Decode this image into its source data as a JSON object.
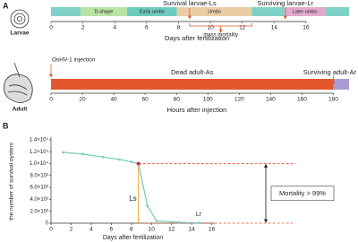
{
  "panel_a": {
    "label": "A",
    "larvae": {
      "label": "Larvae",
      "xlabel": "Days after fertilization",
      "xlim": [
        0,
        18.7
      ],
      "xticks": [
        0,
        2,
        4,
        6,
        8,
        10,
        12,
        14,
        16
      ],
      "segments": [
        {
          "label": null,
          "start": 0,
          "end": 1.85,
          "color": "#7fd0c6"
        },
        {
          "label": "D-shape",
          "start": 1.85,
          "end": 4.77,
          "color": "#b9e2a6"
        },
        {
          "label": "Early umbo",
          "start": 4.77,
          "end": 7.9,
          "color": "#6ccbbf"
        },
        {
          "label": "Umbo",
          "start": 7.9,
          "end": 12.6,
          "color": "#ebcda5"
        },
        {
          "label": null,
          "start": 12.6,
          "end": 14.65,
          "color": "#7fd0c6"
        },
        {
          "label": "Later umbo",
          "start": 14.65,
          "end": 17.2,
          "color": "#e2a9cf"
        },
        {
          "label": null,
          "start": 17.2,
          "end": 18.7,
          "color": "#7fd0c6"
        }
      ],
      "annotations": [
        {
          "text": "Survival larvae-Ls",
          "x": 8.7
        },
        {
          "text": "Surviving larvae-Lr",
          "x": 14.7
        },
        {
          "text": "mass mortality",
          "start": 8.7,
          "end": 12.6
        }
      ]
    },
    "adult": {
      "label": "Adult",
      "xlabel": "Hours after injection",
      "xlim": [
        0,
        190
      ],
      "xticks": [
        0,
        20,
        40,
        60,
        80,
        100,
        120,
        140,
        160,
        180
      ],
      "segments": [
        {
          "start": 0,
          "end": 180,
          "color": "#e4572e"
        },
        {
          "start": 180,
          "end": 190,
          "color": "#a99bd6"
        }
      ],
      "annotations": [
        {
          "text": "OsHV-1 injection",
          "x": 0
        },
        {
          "text": "Dead adult-As"
        },
        {
          "text": "Surviving adult-Ar",
          "x": 180
        }
      ]
    }
  },
  "chart_data": {
    "type": "line",
    "panel_label": "B",
    "xlabel": "Days after fertilization",
    "ylabel": "the number of survival oysters",
    "x": [
      1.2,
      3.2,
      5.2,
      6.8,
      8.0,
      8.7,
      9.6,
      10.5,
      12.7,
      14.7
    ],
    "y": [
      11900,
      11600,
      11100,
      10700,
      10300,
      10000,
      2900,
      400,
      150,
      50
    ],
    "color": "#7fcfc0",
    "xlim": [
      0,
      16.3
    ],
    "xticks": [
      0,
      2,
      4,
      6,
      8,
      10,
      12,
      14,
      16
    ],
    "ylim": [
      0,
      14000
    ],
    "yticks": [
      0,
      {
        "value": 2000,
        "label": "2.0×10³"
      },
      {
        "value": 4000,
        "label": "4.0×10³"
      },
      {
        "value": 6000,
        "label": "6.0×10³"
      },
      {
        "value": 8000,
        "label": "8.0×10³"
      },
      {
        "value": 10000,
        "label": "1.0×10⁴"
      },
      {
        "value": 12000,
        "label": "1.2×10⁴"
      },
      {
        "value": 14000,
        "label": "1.4×10⁴"
      }
    ],
    "annotations": [
      {
        "text": "Ls",
        "x": 8.7,
        "y": 10000
      },
      {
        "text": "Lr",
        "x": 14.7
      },
      {
        "text": "Mortality > 99%",
        "from": 10000,
        "to": 0
      }
    ]
  }
}
